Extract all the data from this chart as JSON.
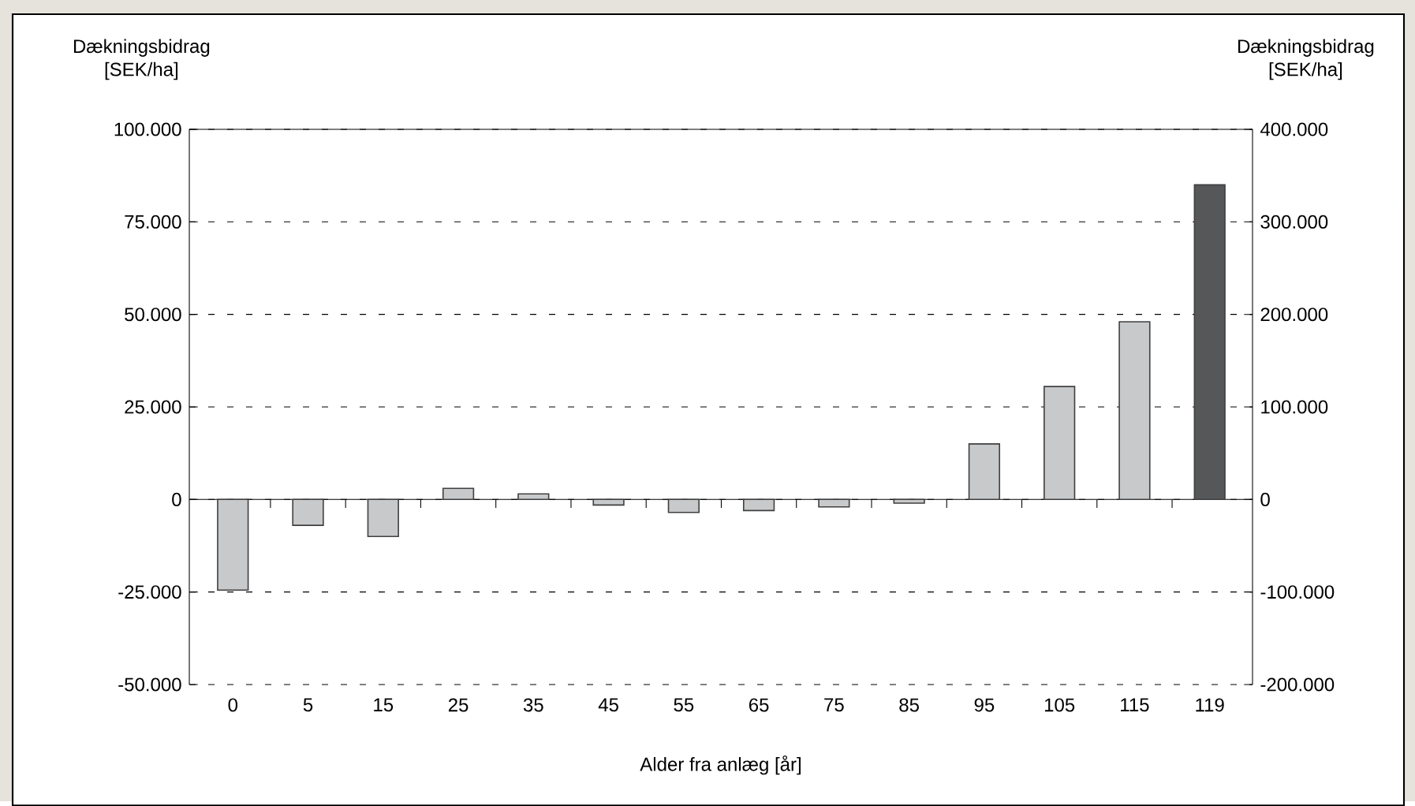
{
  "chart_data": {
    "type": "bar",
    "xlabel": "Alder fra anlæg [år]",
    "ylabel": "Dækningsbidrag [SEK/ha]",
    "y2label": "Dækningsbidrag [SEK/ha]",
    "categories": [
      "0",
      "5",
      "15",
      "25",
      "35",
      "45",
      "55",
      "65",
      "75",
      "85",
      "95",
      "105",
      "115",
      "119"
    ],
    "series": [
      {
        "color": "#c8c9cb",
        "values": [
          -24500,
          -7000,
          -10000,
          3000,
          1500,
          -1500,
          -3500,
          -3000,
          -2000,
          -1000,
          15000,
          30500,
          48000,
          null
        ]
      },
      {
        "color": "#555759",
        "axis": "y2",
        "values": [
          null,
          null,
          null,
          null,
          null,
          null,
          null,
          null,
          null,
          null,
          null,
          null,
          null,
          340000
        ]
      }
    ],
    "ylim": [
      -50000,
      100000
    ],
    "yticks": [
      {
        "value": -50000,
        "label": "-50.000"
      },
      {
        "value": -25000,
        "label": "-25.000"
      },
      {
        "value": 0,
        "label": "0"
      },
      {
        "value": 25000,
        "label": "25.000"
      },
      {
        "value": 50000,
        "label": "50.000"
      },
      {
        "value": 75000,
        "label": "75.000"
      },
      {
        "value": 100000,
        "label": "100.000"
      }
    ],
    "y2lim": [
      -200000,
      400000
    ],
    "y2ticks": [
      {
        "value": -200000,
        "label": "-200.000"
      },
      {
        "value": -100000,
        "label": "-100.000"
      },
      {
        "value": 0,
        "label": "0"
      },
      {
        "value": 100000,
        "label": "100.000"
      },
      {
        "value": 200000,
        "label": "200.000"
      },
      {
        "value": 300000,
        "label": "300.000"
      },
      {
        "value": 400000,
        "label": "400.000"
      }
    ],
    "grid": "y"
  }
}
